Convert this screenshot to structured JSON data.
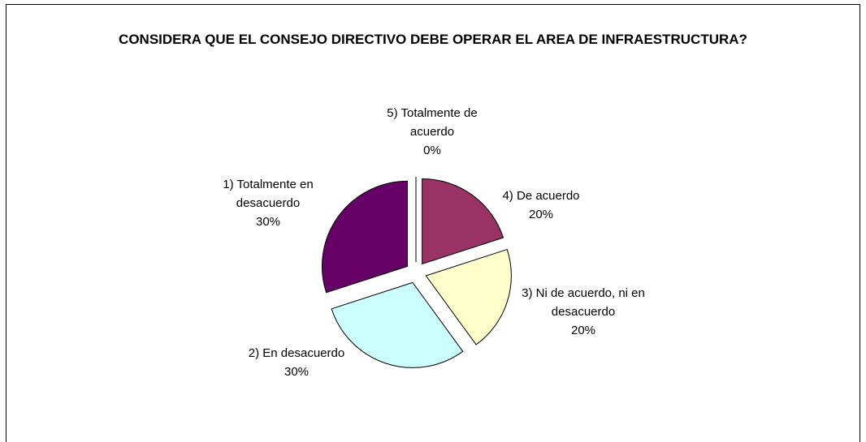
{
  "chart_data": {
    "type": "pie",
    "title": "CONSIDERA QUE EL CONSEJO DIRECTIVO DEBE OPERAR EL AREA DE INFRAESTRUCTURA?",
    "categories": [
      "5) Totalmente de acuerdo",
      "4) De acuerdo",
      "3) Ni de acuerdo, ni en desacuerdo",
      "2) En desacuerdo",
      "1) Totalmente en desacuerdo"
    ],
    "values": [
      0,
      20,
      20,
      30,
      30
    ],
    "value_labels": [
      "0%",
      "20%",
      "20%",
      "30%",
      "30%"
    ],
    "colors": [
      "#9999ff",
      "#993366",
      "#ffffcc",
      "#ccffff",
      "#660066"
    ]
  }
}
